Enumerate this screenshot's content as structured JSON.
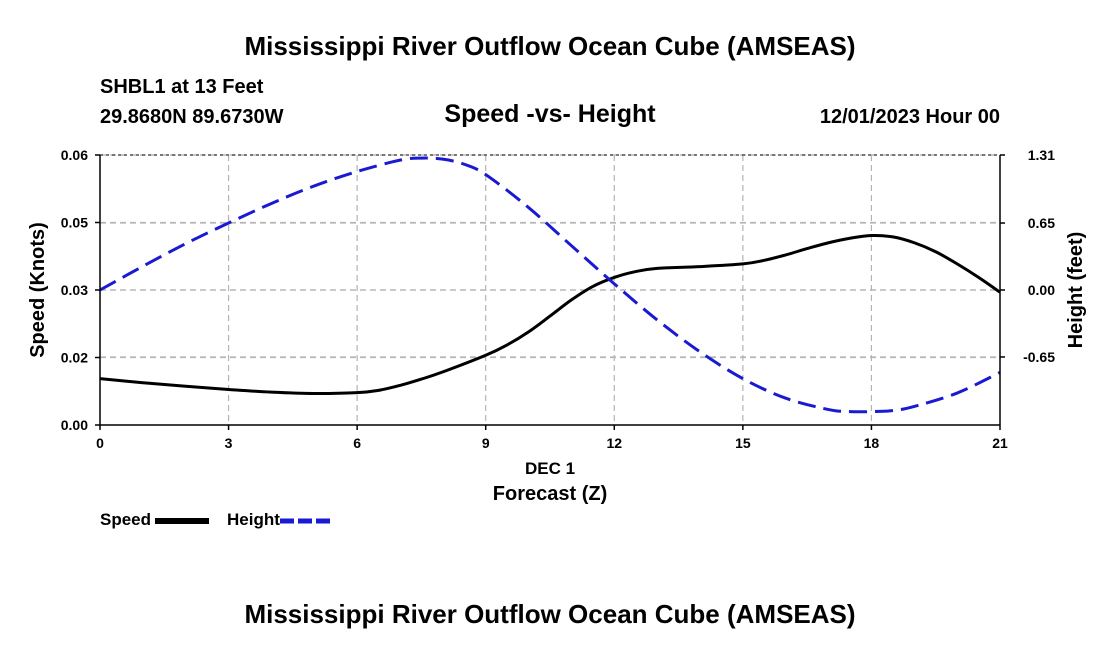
{
  "page": {
    "title": "Mississippi River Outflow Ocean Cube (AMSEAS)",
    "footer_title": "Mississippi River Outflow Ocean Cube (AMSEAS)",
    "station": "SHBL1 at 13 Feet",
    "coordinates": "29.8680N  89.6730W",
    "date_label": "12/01/2023 Hour 00"
  },
  "legend": {
    "speed_label": "Speed",
    "height_label": "Height"
  },
  "colors": {
    "speed": "#000000",
    "height": "#1a1ad2",
    "grid": "#b4b4b4"
  },
  "chart_data": {
    "type": "line",
    "title": "Speed -vs- Height",
    "xlabel_day": "DEC 1",
    "xlabel": "Forecast (Z)",
    "ylabel_left": "Speed (Knots)",
    "ylabel_right": "Height (feet)",
    "xlim": [
      0,
      21
    ],
    "ylim_left": [
      0.0,
      0.06
    ],
    "ylim_right": [
      -1.31,
      1.31
    ],
    "x_ticks": [
      0,
      3,
      6,
      9,
      12,
      15,
      18,
      21
    ],
    "x_tick_labels": [
      "0",
      "3",
      "6",
      "9",
      "12",
      "15",
      "18",
      "21"
    ],
    "y_left_ticks": [
      0.0,
      0.015,
      0.03,
      0.045,
      0.06
    ],
    "y_left_tick_labels": [
      "0.00",
      "0.02",
      "0.03",
      "0.05",
      "0.06"
    ],
    "y_right_ticks": [
      -0.65,
      0.0,
      0.65,
      1.31
    ],
    "y_right_tick_labels": [
      "-0.65",
      "0.00",
      "0.65",
      "1.31"
    ],
    "grid": true,
    "series": [
      {
        "name": "Speed",
        "axis": "left",
        "style": "solid",
        "x": [
          0,
          1,
          2,
          3,
          4,
          5,
          6,
          6.5,
          7,
          7.5,
          8,
          9,
          9.5,
          10,
          10.5,
          11,
          11.5,
          12,
          12.5,
          13,
          14,
          15,
          15.5,
          16,
          16.5,
          17,
          17.5,
          18,
          18.5,
          19,
          19.5,
          20,
          20.5,
          21
        ],
        "values": [
          0.0103,
          0.0094,
          0.0086,
          0.0079,
          0.0073,
          0.007,
          0.0072,
          0.0077,
          0.0088,
          0.0102,
          0.0118,
          0.0155,
          0.0178,
          0.0207,
          0.0242,
          0.0278,
          0.0308,
          0.0328,
          0.0341,
          0.0348,
          0.0352,
          0.0358,
          0.0366,
          0.0378,
          0.0392,
          0.0405,
          0.0415,
          0.0421,
          0.0418,
          0.0405,
          0.0385,
          0.0358,
          0.0328,
          0.0295
        ]
      },
      {
        "name": "Height",
        "axis": "right",
        "style": "dashed",
        "x": [
          0,
          1,
          2,
          3,
          4,
          5,
          6,
          7,
          7.5,
          8,
          8.5,
          9,
          10,
          11,
          12,
          13,
          14,
          15,
          16,
          17,
          17.5,
          18,
          18.5,
          19,
          20,
          21
        ],
        "values": [
          0.0,
          0.23,
          0.45,
          0.65,
          0.84,
          1.01,
          1.15,
          1.26,
          1.28,
          1.27,
          1.22,
          1.12,
          0.8,
          0.43,
          0.06,
          -0.29,
          -0.6,
          -0.86,
          -1.05,
          -1.16,
          -1.18,
          -1.18,
          -1.17,
          -1.13,
          -1.0,
          -0.8
        ]
      }
    ]
  }
}
